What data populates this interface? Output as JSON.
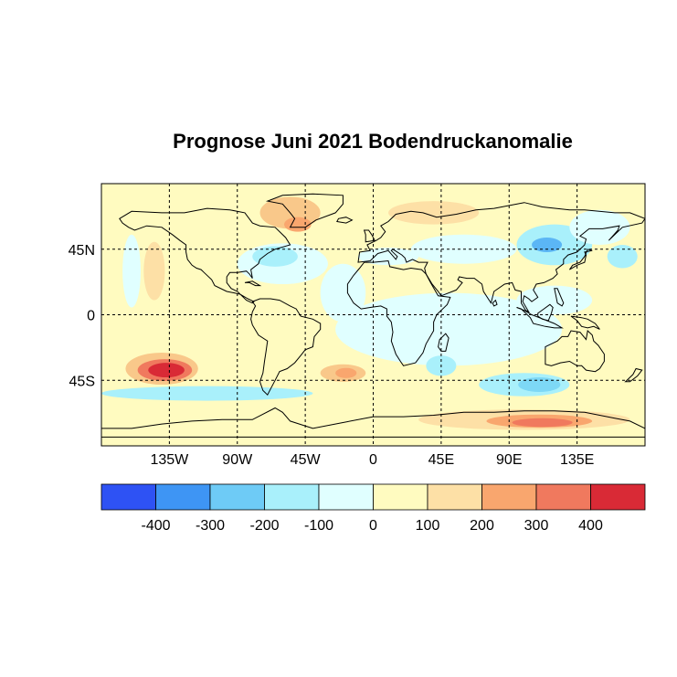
{
  "title": "Prognose Juni 2021 Bodendruckanomalie",
  "map": {
    "projection": "equirectangular",
    "lon_range": [
      -180,
      180
    ],
    "lat_range": [
      -90,
      90
    ],
    "graticule": "dotted",
    "lon_ticks": [
      {
        "lon": -135,
        "label": "135W"
      },
      {
        "lon": -90,
        "label": "90W"
      },
      {
        "lon": -45,
        "label": "45W"
      },
      {
        "lon": 0,
        "label": "0"
      },
      {
        "lon": 45,
        "label": "45E"
      },
      {
        "lon": 90,
        "label": "90E"
      },
      {
        "lon": 135,
        "label": "135E"
      }
    ],
    "lat_ticks": [
      {
        "lat": 45,
        "label": "45N"
      },
      {
        "lat": 0,
        "label": "0"
      },
      {
        "lat": -45,
        "label": "45S"
      }
    ],
    "background_color": "#fffbc0",
    "anomaly_regions": [
      {
        "lon": -140,
        "lat": -37,
        "w": 48,
        "h": 22,
        "color": "#f9c88a"
      },
      {
        "lon": -138,
        "lat": -38,
        "w": 36,
        "h": 15,
        "color": "#f0795e"
      },
      {
        "lon": -137,
        "lat": -38,
        "w": 24,
        "h": 10,
        "color": "#d92a36"
      },
      {
        "lon": -110,
        "lat": -54,
        "w": 140,
        "h": 10,
        "color": "#a9f0fb"
      },
      {
        "lon": -160,
        "lat": 30,
        "w": 12,
        "h": 50,
        "color": "#e0ffff"
      },
      {
        "lon": -145,
        "lat": 30,
        "w": 14,
        "h": 40,
        "color": "#fde0a6"
      },
      {
        "lon": -60,
        "lat": 35,
        "w": 60,
        "h": 28,
        "color": "#e0ffff"
      },
      {
        "lon": -65,
        "lat": 40,
        "w": 30,
        "h": 14,
        "color": "#a9f0fb"
      },
      {
        "lon": -55,
        "lat": 70,
        "w": 40,
        "h": 22,
        "color": "#f9c88a"
      },
      {
        "lon": -50,
        "lat": 62,
        "w": 18,
        "h": 10,
        "color": "#f9a66e"
      },
      {
        "lon": -20,
        "lat": 15,
        "w": 30,
        "h": 40,
        "color": "#e0ffff"
      },
      {
        "lon": 50,
        "lat": -10,
        "w": 150,
        "h": 50,
        "color": "#e0ffff"
      },
      {
        "lon": -20,
        "lat": -40,
        "w": 30,
        "h": 12,
        "color": "#f9c88a"
      },
      {
        "lon": -18,
        "lat": -40,
        "w": 14,
        "h": 7,
        "color": "#f9a66e"
      },
      {
        "lon": 45,
        "lat": -35,
        "w": 20,
        "h": 14,
        "color": "#a9f0fb"
      },
      {
        "lon": 100,
        "lat": -48,
        "w": 60,
        "h": 16,
        "color": "#a9f0fb"
      },
      {
        "lon": 110,
        "lat": -48,
        "w": 28,
        "h": 10,
        "color": "#7dd8f6"
      },
      {
        "lon": 100,
        "lat": -72,
        "w": 140,
        "h": 14,
        "color": "#fde0a6"
      },
      {
        "lon": 110,
        "lat": -73,
        "w": 70,
        "h": 9,
        "color": "#f9a66e"
      },
      {
        "lon": 112,
        "lat": -74,
        "w": 40,
        "h": 6,
        "color": "#f0795e"
      },
      {
        "lon": 40,
        "lat": 70,
        "w": 60,
        "h": 16,
        "color": "#fde0a6"
      },
      {
        "lon": 60,
        "lat": 45,
        "w": 70,
        "h": 20,
        "color": "#e0ffff"
      },
      {
        "lon": 120,
        "lat": 48,
        "w": 50,
        "h": 28,
        "color": "#a9f0fb"
      },
      {
        "lon": 115,
        "lat": 48,
        "w": 20,
        "h": 10,
        "color": "#5bb6f5"
      },
      {
        "lon": 150,
        "lat": 60,
        "w": 40,
        "h": 24,
        "color": "#e0ffff"
      },
      {
        "lon": 165,
        "lat": 40,
        "w": 20,
        "h": 16,
        "color": "#a9f0fb"
      },
      {
        "lon": 120,
        "lat": 10,
        "w": 50,
        "h": 20,
        "color": "#e0ffff"
      },
      {
        "lon": 10,
        "lat": 40,
        "w": 40,
        "h": 12,
        "color": "#e0ffff"
      }
    ]
  },
  "colorbar": {
    "colors": [
      "#2e52f4",
      "#3e95f4",
      "#6ecbf6",
      "#a9f0fb",
      "#e0ffff",
      "#fffbc0",
      "#fde0a6",
      "#f9a66e",
      "#f0795e",
      "#d92a36"
    ],
    "tick_labels": [
      "-400",
      "-300",
      "-200",
      "-100",
      "0",
      "100",
      "200",
      "300",
      "400"
    ]
  }
}
